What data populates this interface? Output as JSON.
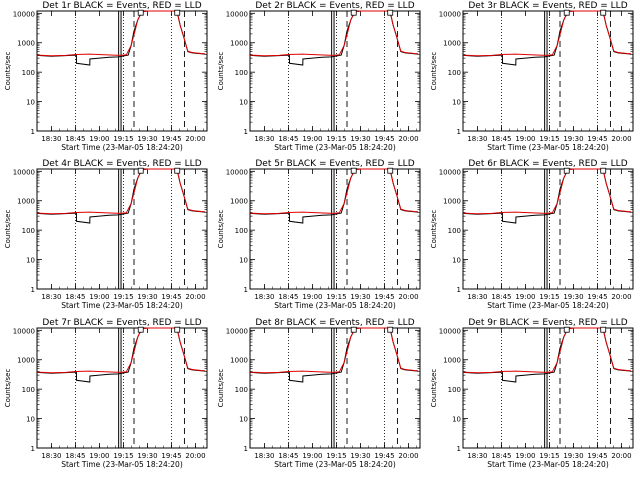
{
  "chart_data": {
    "type": "line",
    "shared": {
      "xlabel": "Start Time (23-Mar-05 18:24:20)",
      "ylabel": "Counts/sec",
      "yscale": "log",
      "ylim": [
        1,
        12000
      ],
      "xlim": [
        18.35,
        20.12
      ],
      "x_ticks": [
        {
          "x": 18.5,
          "label": "18:30"
        },
        {
          "x": 18.75,
          "label": "18:45"
        },
        {
          "x": 19.0,
          "label": "19:00"
        },
        {
          "x": 19.25,
          "label": "19:15"
        },
        {
          "x": 19.5,
          "label": "19:30"
        },
        {
          "x": 19.75,
          "label": "19:45"
        },
        {
          "x": 20.0,
          "label": "20:00"
        }
      ],
      "y_ticks": [
        {
          "y": 1,
          "label": "1"
        },
        {
          "y": 10,
          "label": "10"
        },
        {
          "y": 100,
          "label": "100"
        },
        {
          "y": 1000,
          "label": "1000"
        },
        {
          "y": 10000,
          "label": "10000"
        }
      ],
      "dotted_vlines": [
        18.75,
        19.25,
        19.75
      ],
      "solid_vlines": [
        19.2,
        19.225
      ],
      "dashed_vlines": [
        19.36,
        19.885
      ],
      "small_boxes": [
        {
          "x": 19.43,
          "y": 10500
        },
        {
          "x": 19.81,
          "y": 10500
        }
      ],
      "series_names": [
        "BLACK = Events",
        "RED = LLD"
      ],
      "series_colors": [
        "#000000",
        "#e00000"
      ],
      "red_x": [
        18.35,
        18.5,
        18.65,
        18.75,
        18.9,
        19.05,
        19.15,
        19.22,
        19.28,
        19.33,
        19.37,
        19.4,
        19.43,
        19.46,
        19.5,
        19.78,
        19.81,
        19.84,
        19.88,
        19.92,
        19.96,
        20.0,
        20.06,
        20.1
      ],
      "red_y": [
        380,
        360,
        370,
        400,
        410,
        390,
        380,
        370,
        390,
        800,
        2500,
        6000,
        9500,
        11500,
        12000,
        12000,
        11000,
        4000,
        1500,
        520,
        470,
        450,
        430,
        420
      ],
      "black_x": [
        18.35,
        18.5,
        18.65,
        18.76,
        18.761,
        18.9,
        18.901,
        19.0,
        19.1,
        19.2,
        19.3,
        19.33,
        19.36,
        19.4,
        19.43,
        19.46,
        19.5,
        19.78,
        19.81,
        19.84,
        19.88,
        19.92,
        19.96,
        20.0,
        20.06,
        20.1
      ],
      "black_y": [
        370,
        350,
        365,
        380,
        200,
        175,
        280,
        300,
        320,
        330,
        380,
        800,
        2500,
        6000,
        9500,
        11500,
        12000,
        12000,
        11000,
        4000,
        1500,
        500,
        460,
        440,
        420,
        410
      ]
    },
    "panels": [
      {
        "title": "Det 1r  BLACK = Events, RED = LLD"
      },
      {
        "title": "Det 2r  BLACK = Events, RED = LLD"
      },
      {
        "title": "Det 3r  BLACK = Events, RED = LLD"
      },
      {
        "title": "Det 4r  BLACK = Events, RED = LLD"
      },
      {
        "title": "Det 5r  BLACK = Events, RED = LLD"
      },
      {
        "title": "Det 6r  BLACK = Events, RED = LLD"
      },
      {
        "title": "Det 7r  BLACK = Events, RED = LLD"
      },
      {
        "title": "Det 8r  BLACK = Events, RED = LLD"
      },
      {
        "title": "Det 9r  BLACK = Events, RED = LLD"
      }
    ]
  }
}
